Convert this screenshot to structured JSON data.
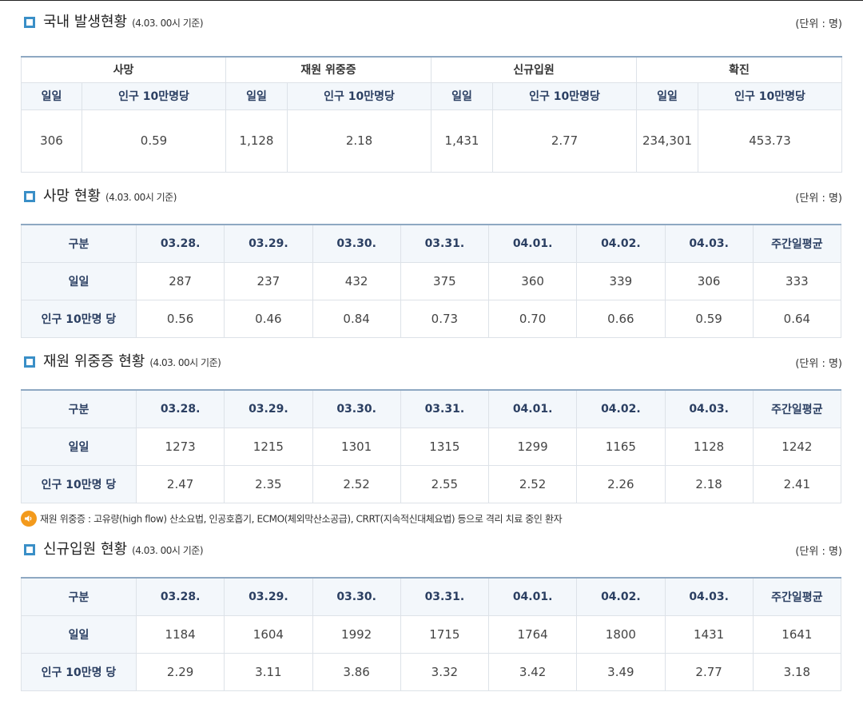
{
  "domestic": {
    "title": "국내 발생현황",
    "note": "(4.03. 00시 기준)",
    "unit": "(단위 : 명)",
    "groups": [
      "사망",
      "재원 위중증",
      "신규입원",
      "확진"
    ],
    "subheads": [
      "일일",
      "인구 10만명당"
    ],
    "values": [
      "306",
      "0.59",
      "1,128",
      "2.18",
      "1,431",
      "2.77",
      "234,301",
      "453.73"
    ]
  },
  "death": {
    "title": "사망 현황",
    "note": "(4.03. 00시 기준)",
    "unit": "(단위 : 명)",
    "header": [
      "구분",
      "03.28.",
      "03.29.",
      "03.30.",
      "03.31.",
      "04.01.",
      "04.02.",
      "04.03.",
      "주간일평균"
    ],
    "rows": [
      {
        "label": "일일",
        "cells": [
          "287",
          "237",
          "432",
          "375",
          "360",
          "339",
          "306",
          "333"
        ]
      },
      {
        "label": "인구 10만명 당",
        "cells": [
          "0.56",
          "0.46",
          "0.84",
          "0.73",
          "0.70",
          "0.66",
          "0.59",
          "0.64"
        ]
      }
    ]
  },
  "severe": {
    "title": "재원 위중증 현황",
    "note": "(4.03. 00시 기준)",
    "unit": "(단위 : 명)",
    "header": [
      "구분",
      "03.28.",
      "03.29.",
      "03.30.",
      "03.31.",
      "04.01.",
      "04.02.",
      "04.03.",
      "주간일평균"
    ],
    "rows": [
      {
        "label": "일일",
        "cells": [
          "1273",
          "1215",
          "1301",
          "1315",
          "1299",
          "1165",
          "1128",
          "1242"
        ]
      },
      {
        "label": "인구 10만명 당",
        "cells": [
          "2.47",
          "2.35",
          "2.52",
          "2.55",
          "2.52",
          "2.26",
          "2.18",
          "2.41"
        ]
      }
    ]
  },
  "footnote": "재원 위중증 : 고유량(high flow) 산소요법, 인공호흡기, ECMO(체외막산소공급), CRRT(지속적신대체요법) 등으로 격리 치료 중인 환자",
  "admission": {
    "title": "신규입원 현황",
    "note": "(4.03. 00시 기준)",
    "unit": "(단위 : 명)",
    "header": [
      "구분",
      "03.28.",
      "03.29.",
      "03.30.",
      "03.31.",
      "04.01.",
      "04.02.",
      "04.03.",
      "주간일평균"
    ],
    "rows": [
      {
        "label": "일일",
        "cells": [
          "1184",
          "1604",
          "1992",
          "1715",
          "1764",
          "1800",
          "1431",
          "1641"
        ]
      },
      {
        "label": "인구 10만명 당",
        "cells": [
          "2.29",
          "3.11",
          "3.86",
          "3.32",
          "3.42",
          "3.49",
          "2.77",
          "3.18"
        ]
      }
    ]
  },
  "colors": {
    "accent": "#3a8fc7",
    "header_bg": "#f3f7fb",
    "header_text": "#2b3f62",
    "note_icon": "#f39a1c"
  }
}
